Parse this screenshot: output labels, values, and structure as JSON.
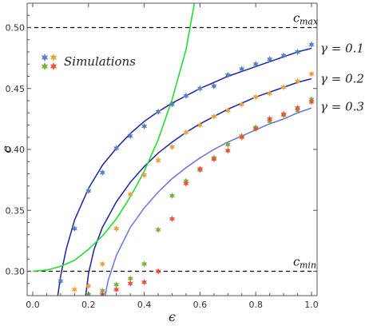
{
  "chart_data": {
    "type": "scatter",
    "xlabel": "ϵ",
    "ylabel": "c",
    "xlim": [
      -0.02,
      1.02
    ],
    "ylim": [
      0.28,
      0.52
    ],
    "x_ticks": [
      "0.0",
      "0.2",
      "0.4",
      "0.6",
      "0.8",
      "1.0"
    ],
    "x_tick_values": [
      0.0,
      0.2,
      0.4,
      0.6,
      0.8,
      1.0
    ],
    "y_ticks": [
      "0.30",
      "0.35",
      "0.40",
      "0.45",
      "0.50"
    ],
    "y_tick_values": [
      0.3,
      0.35,
      0.4,
      0.45,
      0.5
    ],
    "reference_lines": [
      {
        "label_main": "c",
        "label_sub": "max",
        "y": 0.5
      },
      {
        "label_main": "c",
        "label_sub": "min",
        "y": 0.3
      }
    ],
    "legend": {
      "label": "Simulations",
      "position": "top-left",
      "marker_colors": [
        "#5b7fbf",
        "#e8a33d",
        "#7cae42",
        "#e8553a"
      ]
    },
    "colors": {
      "theory": "#1a23a8",
      "theory_light": "#6b73d9",
      "green_curve": "#22dd33",
      "sim_blue": "#5b7fbf",
      "sim_orange": "#e8a33d",
      "sim_green": "#7cae42",
      "sim_red": "#e8553a"
    },
    "curve_labels": [
      {
        "text": "γ = 0.1",
        "y": 0.483
      },
      {
        "text": "γ = 0.2",
        "y": 0.458
      },
      {
        "text": "γ = 0.3",
        "y": 0.435
      }
    ],
    "theory_curves": [
      {
        "key": "g01",
        "color": "theory",
        "x": [
          0.09,
          0.1,
          0.12,
          0.15,
          0.2,
          0.25,
          0.3,
          0.35,
          0.4,
          0.45,
          0.5,
          0.55,
          0.6,
          0.65,
          0.7,
          0.75,
          0.8,
          0.85,
          0.9,
          0.95,
          1.0
        ],
        "y": [
          0.28,
          0.296,
          0.318,
          0.342,
          0.368,
          0.387,
          0.401,
          0.413,
          0.423,
          0.431,
          0.438,
          0.444,
          0.45,
          0.455,
          0.46,
          0.464,
          0.468,
          0.472,
          0.476,
          0.48,
          0.483
        ]
      },
      {
        "key": "g02",
        "color": "theory",
        "x": [
          0.19,
          0.2,
          0.22,
          0.25,
          0.3,
          0.35,
          0.4,
          0.45,
          0.5,
          0.55,
          0.6,
          0.65,
          0.7,
          0.75,
          0.8,
          0.85,
          0.9,
          0.95,
          1.0
        ],
        "y": [
          0.28,
          0.298,
          0.318,
          0.336,
          0.357,
          0.373,
          0.386,
          0.397,
          0.406,
          0.414,
          0.421,
          0.427,
          0.433,
          0.438,
          0.443,
          0.447,
          0.451,
          0.455,
          0.458
        ]
      },
      {
        "key": "g03",
        "color": "theory_light",
        "x": [
          0.26,
          0.27,
          0.3,
          0.35,
          0.4,
          0.45,
          0.5,
          0.55,
          0.6,
          0.65,
          0.7,
          0.75,
          0.8,
          0.85,
          0.9,
          0.95,
          1.0
        ],
        "y": [
          0.28,
          0.292,
          0.313,
          0.336,
          0.352,
          0.365,
          0.376,
          0.385,
          0.393,
          0.4,
          0.406,
          0.411,
          0.416,
          0.421,
          0.425,
          0.43,
          0.434
        ]
      },
      {
        "key": "green",
        "color": "green_curve",
        "x": [
          0.0,
          0.05,
          0.1,
          0.15,
          0.2,
          0.25,
          0.3,
          0.35,
          0.4,
          0.45,
          0.5,
          0.55,
          0.58
        ],
        "y": [
          0.3,
          0.301,
          0.304,
          0.309,
          0.318,
          0.329,
          0.343,
          0.361,
          0.382,
          0.408,
          0.441,
          0.482,
          0.52
        ]
      }
    ],
    "series": [
      {
        "color": "sim_blue",
        "x": [
          0.1,
          0.15,
          0.2,
          0.25,
          0.3,
          0.35,
          0.4,
          0.45,
          0.5,
          0.55,
          0.6,
          0.65,
          0.7,
          0.75,
          0.8,
          0.85,
          0.9,
          0.95,
          1.0
        ],
        "y": [
          0.292,
          0.335,
          0.366,
          0.381,
          0.401,
          0.411,
          0.419,
          0.431,
          0.437,
          0.444,
          0.45,
          0.452,
          0.461,
          0.466,
          0.47,
          0.474,
          0.477,
          0.48,
          0.486
        ]
      },
      {
        "color": "sim_orange",
        "x": [
          0.15,
          0.2,
          0.25,
          0.3,
          0.35,
          0.4,
          0.45,
          0.5,
          0.55,
          0.6,
          0.65,
          0.7,
          0.75,
          0.8,
          0.85,
          0.9,
          0.95,
          1.0
        ],
        "y": [
          0.285,
          0.288,
          0.306,
          0.335,
          0.363,
          0.379,
          0.391,
          0.402,
          0.414,
          0.42,
          0.427,
          0.432,
          0.437,
          0.443,
          0.446,
          0.451,
          0.456,
          0.462
        ]
      },
      {
        "color": "sim_green",
        "x": [
          0.15,
          0.2,
          0.25,
          0.3,
          0.35,
          0.4,
          0.45,
          0.5,
          0.55,
          0.6,
          0.65,
          0.7,
          0.75,
          0.8,
          0.85,
          0.9,
          0.95,
          1.0
        ],
        "y": [
          0.278,
          0.281,
          0.284,
          0.289,
          0.294,
          0.306,
          0.334,
          0.362,
          0.374,
          0.383,
          0.393,
          0.404,
          0.411,
          0.418,
          0.423,
          0.428,
          0.432,
          0.441
        ]
      },
      {
        "color": "sim_red",
        "x": [
          0.15,
          0.2,
          0.25,
          0.3,
          0.35,
          0.4,
          0.45,
          0.5,
          0.55,
          0.6,
          0.65,
          0.7,
          0.75,
          0.8,
          0.85,
          0.9,
          0.95,
          1.0
        ],
        "y": [
          0.275,
          0.278,
          0.281,
          0.285,
          0.29,
          0.291,
          0.3,
          0.343,
          0.372,
          0.384,
          0.392,
          0.399,
          0.41,
          0.417,
          0.425,
          0.429,
          0.434,
          0.439
        ]
      }
    ]
  }
}
